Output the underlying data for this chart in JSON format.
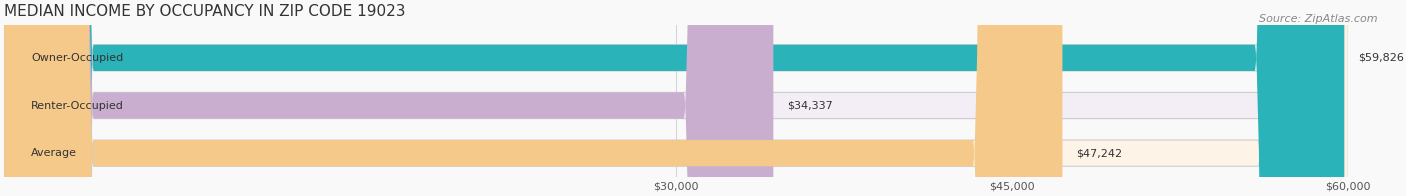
{
  "title": "MEDIAN INCOME BY OCCUPANCY IN ZIP CODE 19023",
  "source": "Source: ZipAtlas.com",
  "categories": [
    "Owner-Occupied",
    "Renter-Occupied",
    "Average"
  ],
  "values": [
    59826,
    34337,
    47242
  ],
  "labels": [
    "$59,826",
    "$34,337",
    "$47,242"
  ],
  "bar_colors": [
    "#2ab3b8",
    "#c9aed0",
    "#f5c98a"
  ],
  "bar_bg_colors": [
    "#e8f6f7",
    "#f3eef6",
    "#fdf3e6"
  ],
  "xmin": 0,
  "xmax": 60000,
  "xticks": [
    30000,
    45000,
    60000
  ],
  "xtick_labels": [
    "$30,000",
    "$45,000",
    "$60,000"
  ],
  "title_fontsize": 11,
  "source_fontsize": 8,
  "label_fontsize": 8,
  "category_fontsize": 8,
  "background_color": "#f9f9f9",
  "bar_bg_color": "#f0f0f0"
}
